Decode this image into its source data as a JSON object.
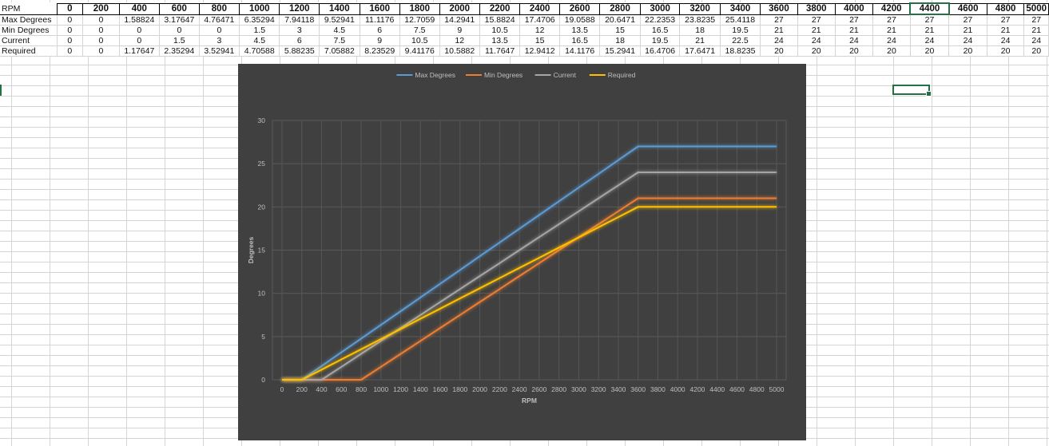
{
  "sheet": {
    "x_label": "RPM",
    "x_values": [
      "0",
      "200",
      "400",
      "600",
      "800",
      "1000",
      "1200",
      "1400",
      "1600",
      "1800",
      "2000",
      "2200",
      "2400",
      "2600",
      "2800",
      "3000",
      "3200",
      "3400",
      "3600",
      "3800",
      "4000",
      "4200",
      "4400",
      "4600",
      "4800",
      "5000"
    ],
    "selected_header": "4400",
    "rows": [
      {
        "label": "Max Degrees",
        "values": [
          "0",
          "0",
          "1.58824",
          "3.17647",
          "4.76471",
          "6.35294",
          "7.94118",
          "9.52941",
          "11.1176",
          "12.7059",
          "14.2941",
          "15.8824",
          "17.4706",
          "19.0588",
          "20.6471",
          "22.2353",
          "23.8235",
          "25.4118",
          "27",
          "27",
          "27",
          "27",
          "27",
          "27",
          "27",
          "27"
        ]
      },
      {
        "label": "Min Degrees",
        "values": [
          "0",
          "0",
          "0",
          "0",
          "0",
          "1.5",
          "3",
          "4.5",
          "6",
          "7.5",
          "9",
          "10.5",
          "12",
          "13.5",
          "15",
          "16.5",
          "18",
          "19.5",
          "21",
          "21",
          "21",
          "21",
          "21",
          "21",
          "21",
          "21"
        ]
      },
      {
        "label": "Current",
        "values": [
          "0",
          "0",
          "0",
          "1.5",
          "3",
          "4.5",
          "6",
          "7.5",
          "9",
          "10.5",
          "12",
          "13.5",
          "15",
          "16.5",
          "18",
          "19.5",
          "21",
          "22.5",
          "24",
          "24",
          "24",
          "24",
          "24",
          "24",
          "24",
          "24"
        ]
      },
      {
        "label": "Required",
        "values": [
          "0",
          "0",
          "1.17647",
          "2.35294",
          "3.52941",
          "4.70588",
          "5.88235",
          "7.05882",
          "8.23529",
          "9.41176",
          "10.5882",
          "11.7647",
          "12.9412",
          "14.1176",
          "15.2941",
          "16.4706",
          "17.6471",
          "18.8235",
          "20",
          "20",
          "20",
          "20",
          "20",
          "20",
          "20",
          "20"
        ]
      }
    ]
  },
  "chart_data": {
    "type": "line",
    "title": "",
    "xlabel": "RPM",
    "ylabel": "Degrees",
    "x": [
      0,
      200,
      400,
      600,
      800,
      1000,
      1200,
      1400,
      1600,
      1800,
      2000,
      2200,
      2400,
      2600,
      2800,
      3000,
      3200,
      3400,
      3600,
      3800,
      4000,
      4200,
      4400,
      4600,
      4800,
      5000
    ],
    "ylim": [
      0,
      30
    ],
    "y_ticks": [
      0,
      5,
      10,
      15,
      20,
      25,
      30
    ],
    "grid": true,
    "legend": "top",
    "series": [
      {
        "name": "Max Degrees",
        "color": "#5b9bd5",
        "values": [
          0,
          0,
          1.58824,
          3.17647,
          4.76471,
          6.35294,
          7.94118,
          9.52941,
          11.1176,
          12.7059,
          14.2941,
          15.8824,
          17.4706,
          19.0588,
          20.6471,
          22.2353,
          23.8235,
          25.4118,
          27,
          27,
          27,
          27,
          27,
          27,
          27,
          27
        ]
      },
      {
        "name": "Min Degrees",
        "color": "#ed7d31",
        "values": [
          0,
          0,
          0,
          0,
          0,
          1.5,
          3,
          4.5,
          6,
          7.5,
          9,
          10.5,
          12,
          13.5,
          15,
          16.5,
          18,
          19.5,
          21,
          21,
          21,
          21,
          21,
          21,
          21,
          21
        ]
      },
      {
        "name": "Current",
        "color": "#a5a5a5",
        "values": [
          0,
          0,
          0,
          1.5,
          3,
          4.5,
          6,
          7.5,
          9,
          10.5,
          12,
          13.5,
          15,
          16.5,
          18,
          19.5,
          21,
          22.5,
          24,
          24,
          24,
          24,
          24,
          24,
          24,
          24
        ]
      },
      {
        "name": "Required",
        "color": "#ffc000",
        "values": [
          0,
          0,
          1.17647,
          2.35294,
          3.52941,
          4.70588,
          5.88235,
          7.05882,
          8.23529,
          9.41176,
          10.5882,
          11.7647,
          12.9412,
          14.1176,
          15.2941,
          16.4706,
          17.6471,
          18.8235,
          20,
          20,
          20,
          20,
          20,
          20,
          20,
          20
        ]
      }
    ]
  }
}
